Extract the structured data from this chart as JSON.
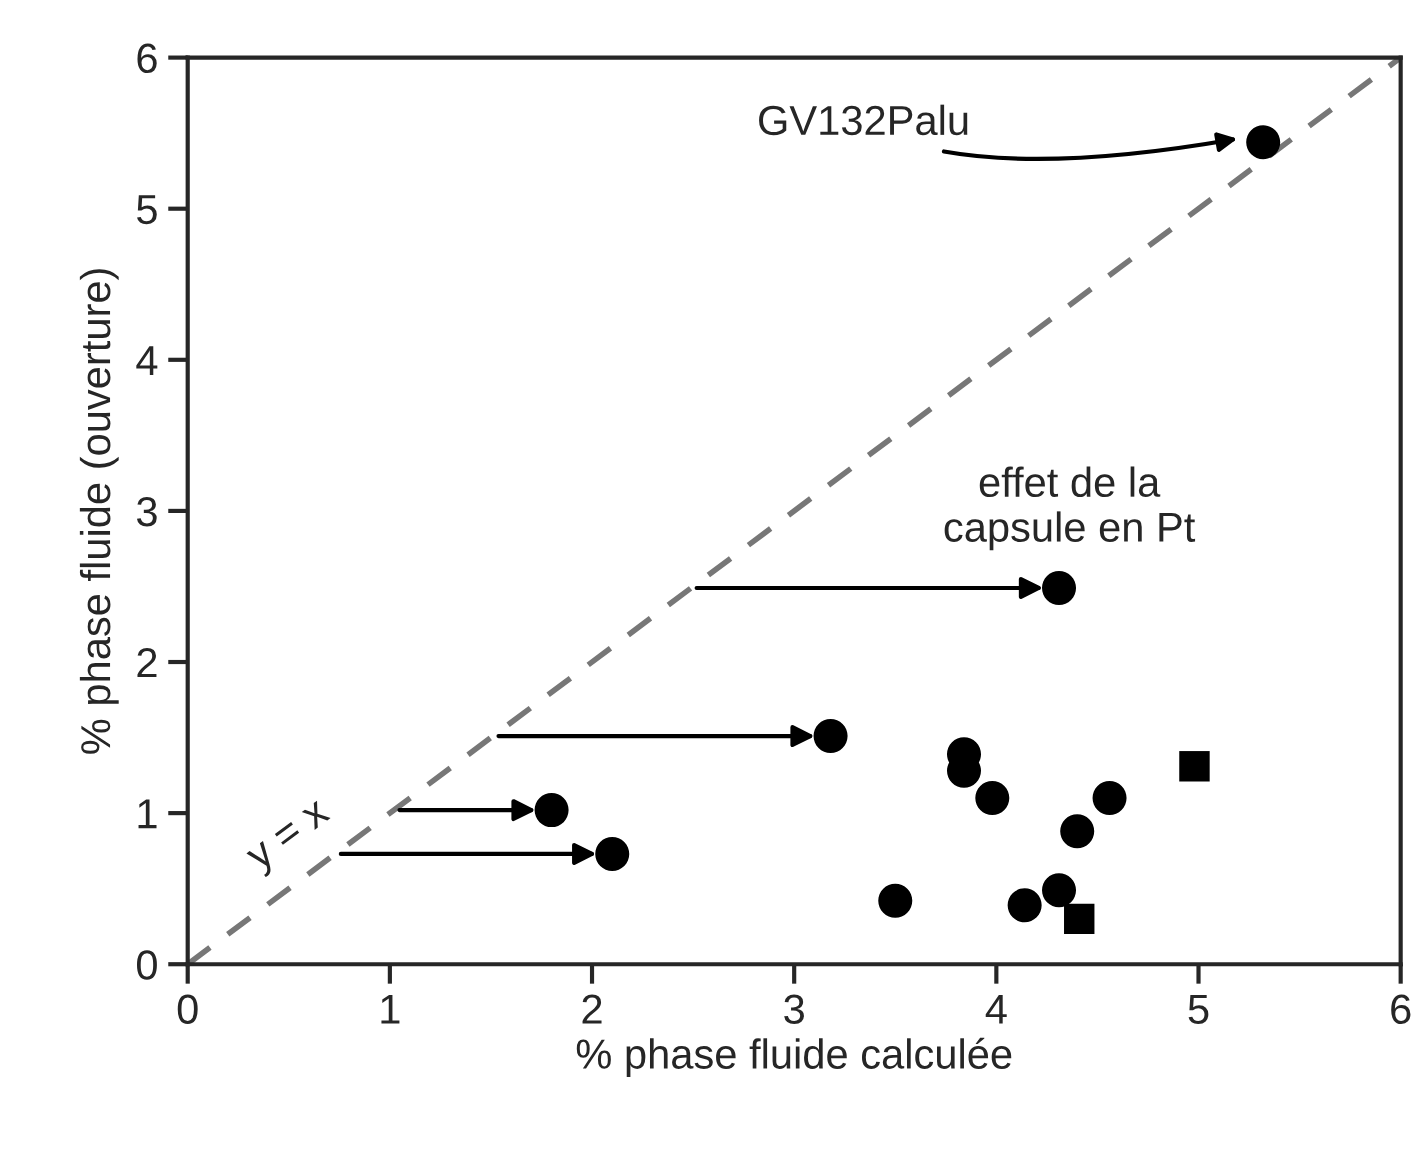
{
  "chart_data": {
    "type": "scatter",
    "xlabel": "% phase fluide calculée",
    "ylabel": "% phase fluide (ouverture)",
    "series": [
      {
        "color": "#000000",
        "marker": "circle",
        "x": [
          4.31,
          3.18,
          1.8,
          2.1
        ],
        "values": [
          2.49,
          1.51,
          1.02,
          0.73
        ]
      },
      {
        "color": "#000000",
        "marker": "circle",
        "x": [
          5.32,
          3.84,
          3.84,
          3.98,
          4.56,
          4.4,
          4.31,
          4.14,
          3.5
        ],
        "values": [
          5.44,
          1.39,
          1.28,
          1.1,
          1.1,
          0.88,
          0.49,
          0.39,
          0.42
        ]
      },
      {
        "color": "#000000",
        "marker": "square",
        "x": [
          4.41,
          4.98
        ],
        "values": [
          0.3,
          1.31
        ]
      },
      {
        "type": "line",
        "color": "#777777",
        "line_style": "dashed",
        "marker": "none",
        "x": [
          0,
          6
        ],
        "values": [
          0,
          6
        ]
      }
    ],
    "annotations": [
      "GV132Palu",
      {
        "text": "effet de la\ncapsule en Pt",
        "x": 4.31,
        "y": 2.49
      },
      {
        "text": "y = x",
        "x": 0.5,
        "y": 0.5
      }
    ],
    "xlim": [
      0,
      6
    ],
    "ylim": [
      0,
      6
    ],
    "xticks": [
      0,
      1,
      2,
      3,
      4,
      5,
      6
    ],
    "yticks": [
      0,
      1,
      2,
      3,
      4,
      5,
      6
    ],
    "grid": false,
    "legend": false
  }
}
